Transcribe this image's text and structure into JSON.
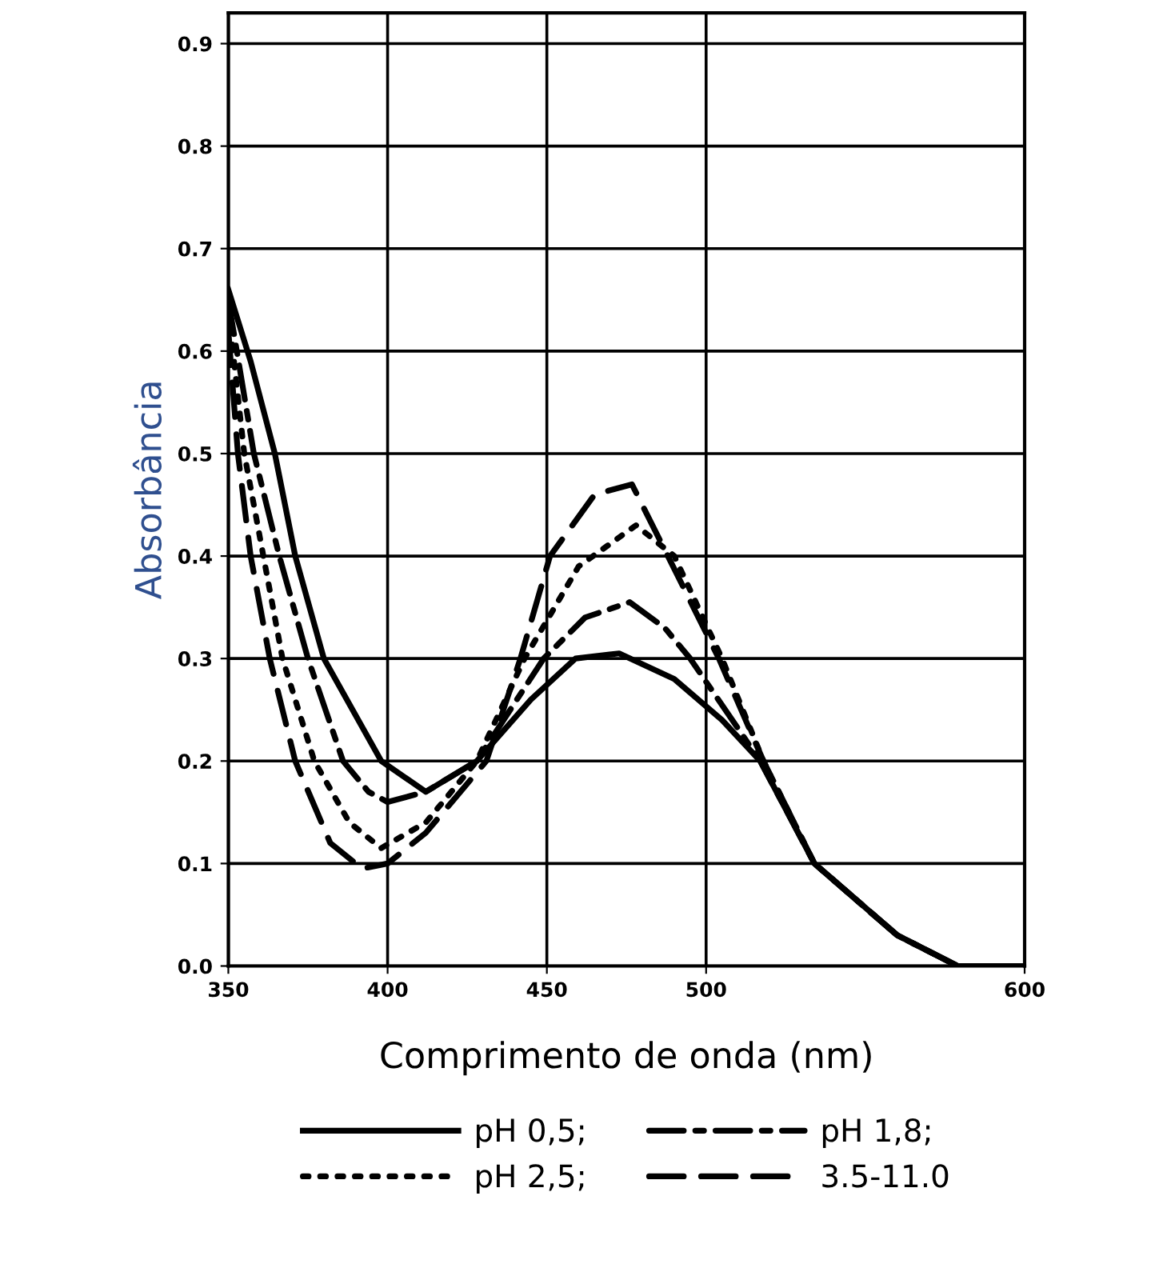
{
  "chart_data": {
    "type": "line",
    "xlabel": "Comprimento de onda (nm)",
    "ylabel": "Absorbância",
    "xlim": [
      350,
      600
    ],
    "xticks": [
      350,
      400,
      450,
      500,
      600
    ],
    "ylim": [
      0,
      0.93
    ],
    "yticks": [
      {
        "value": 0,
        "label": "0.0"
      },
      0.1,
      0.2,
      0.3,
      0.4,
      0.5,
      0.6,
      0.7,
      0.8,
      0.9
    ],
    "grid": true,
    "legend": "bottom",
    "series": [
      {
        "name": "pH 0,5;",
        "color": "#000000",
        "line_style": "solid",
        "x": [
          350,
          357,
          364.6,
          371,
          380,
          398,
          412,
          428,
          445,
          459,
          472.7,
          490,
          505,
          517,
          534,
          560,
          579,
          600
        ],
        "values": [
          0.66,
          0.59,
          0.5,
          0.4,
          0.3,
          0.2,
          0.17,
          0.2,
          0.26,
          0.3,
          0.305,
          0.28,
          0.24,
          0.2,
          0.1,
          0.03,
          0.0,
          0.0
        ]
      },
      {
        "name": "pH 2,5;",
        "color": "#000000",
        "line_style": "dotted",
        "x": [
          350,
          355,
          361,
          367,
          377,
          388,
          398,
          412,
          428,
          443,
          460,
          478,
          490,
          505,
          518,
          534,
          560,
          579,
          600
        ],
        "values": [
          0.64,
          0.5,
          0.4,
          0.3,
          0.2,
          0.14,
          0.115,
          0.14,
          0.2,
          0.3,
          0.39,
          0.43,
          0.4,
          0.3,
          0.2,
          0.1,
          0.03,
          0.0,
          0.0
        ]
      },
      {
        "name": "pH 1,8;",
        "color": "#000000",
        "line_style": "dashdot",
        "x": [
          350,
          358,
          366,
          375,
          386,
          394,
          400,
          412,
          428,
          449,
          462,
          476,
          487,
          495,
          517,
          534,
          560,
          579,
          600
        ],
        "values": [
          0.65,
          0.5,
          0.4,
          0.3,
          0.2,
          0.17,
          0.16,
          0.17,
          0.2,
          0.3,
          0.34,
          0.355,
          0.33,
          0.3,
          0.2,
          0.1,
          0.03,
          0.0,
          0.0
        ]
      },
      {
        "name": "3.5-11.0",
        "color": "#000000",
        "line_style": "dashed",
        "x": [
          350,
          353,
          357,
          363,
          371,
          382,
          392,
          400,
          412,
          431,
          441.7,
          451,
          465,
          476.7,
          488,
          504,
          518,
          534,
          560,
          579,
          600
        ],
        "values": [
          0.62,
          0.5,
          0.4,
          0.3,
          0.2,
          0.12,
          0.095,
          0.1,
          0.13,
          0.2,
          0.3,
          0.4,
          0.46,
          0.47,
          0.4,
          0.3,
          0.2,
          0.1,
          0.03,
          0.0,
          0.0
        ]
      }
    ]
  }
}
